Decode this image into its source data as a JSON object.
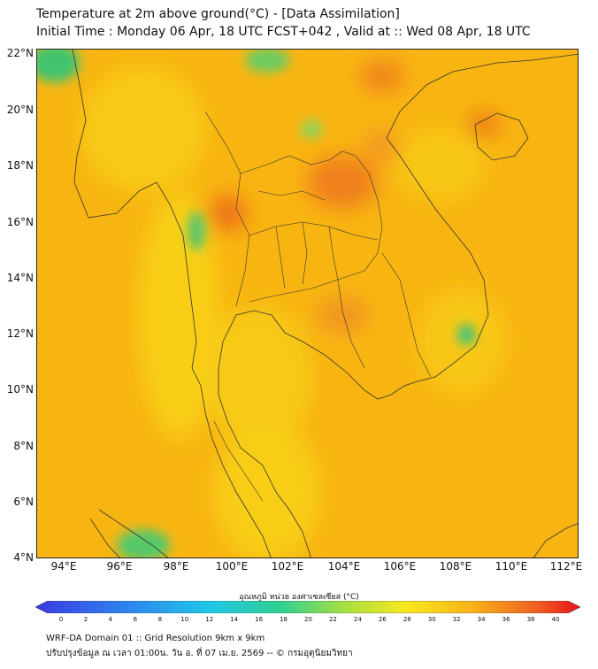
{
  "title": {
    "line1": "Temperature at 2m above ground(°C) - [Data Assimilation]",
    "line2": "Initial Time : Monday 06 Apr, 18 UTC FCST+042 , Valid at :: Wed 08 Apr, 18 UTC"
  },
  "map": {
    "lat_labels": [
      "22°N",
      "20°N",
      "18°N",
      "16°N",
      "14°N",
      "12°N",
      "10°N",
      "8°N",
      "6°N",
      "4°N"
    ],
    "lon_labels": [
      "94°E",
      "96°E",
      "98°E",
      "100°E",
      "102°E",
      "104°E",
      "106°E",
      "108°E",
      "110°E",
      "112°E"
    ],
    "colors": {
      "base": "#f8b512",
      "hot": "#f07a18",
      "warm": "#f8cf15",
      "cool": "#35c87a",
      "border": "#333333"
    }
  },
  "colorbar": {
    "title": "อุณหภูมิ หน่วย องศาเซลเซียส (°C)",
    "ticks": [
      "0",
      "2",
      "4",
      "6",
      "8",
      "10",
      "12",
      "14",
      "16",
      "18",
      "20",
      "22",
      "24",
      "26",
      "28",
      "30",
      "32",
      "34",
      "36",
      "38",
      "40"
    ],
    "min_color": "#3a3ae0",
    "max_color": "#e8101c"
  },
  "footer": {
    "line1": "WRF-DA Domain 01 :: Grid Resolution 9km x 9km",
    "line2": "ปรับปรุงข้อมูล ณ เวลา 01:00น. วัน อ. ที่ 07 เม.ย. 2569 -- © กรมอุตุนิยมวิทยา"
  }
}
